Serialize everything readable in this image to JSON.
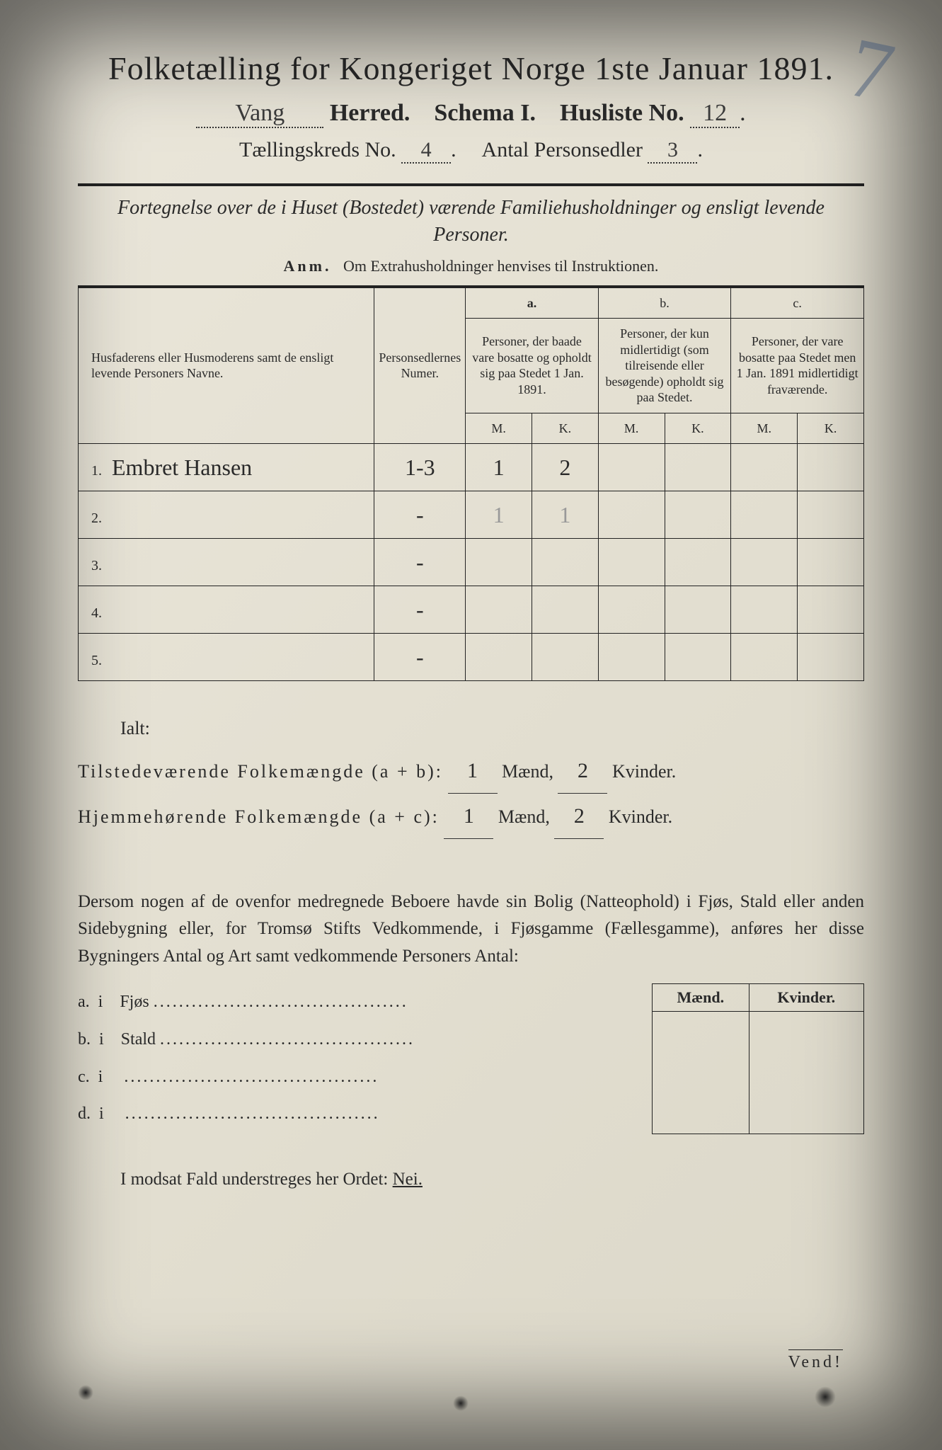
{
  "header": {
    "title": "Folketælling for Kongeriget Norge 1ste Januar 1891.",
    "herred_value": "Vang",
    "herred_label": "Herred.",
    "schema_label": "Schema I.",
    "husliste_label": "Husliste No.",
    "husliste_value": "12",
    "kreds_label": "Tællingskreds No.",
    "kreds_value": "4",
    "antal_label": "Antal Personsedler",
    "antal_value": "3"
  },
  "subtitle": "Fortegnelse over de i Huset (Bostedet) værende Familiehusholdninger og ensligt levende Personer.",
  "anm": {
    "label": "Anm.",
    "text": "Om Extrahusholdninger henvises til Instruktionen."
  },
  "table": {
    "columns": {
      "name": "Husfaderens eller Husmoderens samt de ensligt levende Personers Navne.",
      "numer": "Personsedlernes Numer.",
      "a_label": "a.",
      "a_text": "Personer, der baade vare bosatte og opholdt sig paa Stedet 1 Jan. 1891.",
      "b_label": "b.",
      "b_text": "Personer, der kun midlertidigt (som tilreisende eller besøgende) opholdt sig paa Stedet.",
      "c_label": "c.",
      "c_text": "Personer, der vare bosatte paa Stedet men 1 Jan. 1891 midlertidigt fraværende.",
      "m": "M.",
      "k": "K."
    },
    "rows": [
      {
        "n": "1.",
        "name": "Embret Hansen",
        "numer": "1-3",
        "a_m": "1",
        "a_k": "2",
        "b_m": "",
        "b_k": "",
        "c_m": "",
        "c_k": ""
      },
      {
        "n": "2.",
        "name": "",
        "numer": "-",
        "a_m": "1",
        "a_k": "1",
        "b_m": "",
        "b_k": "",
        "c_m": "",
        "c_k": "",
        "faint": true
      },
      {
        "n": "3.",
        "name": "",
        "numer": "-",
        "a_m": "",
        "a_k": "",
        "b_m": "",
        "b_k": "",
        "c_m": "",
        "c_k": ""
      },
      {
        "n": "4.",
        "name": "",
        "numer": "-",
        "a_m": "",
        "a_k": "",
        "b_m": "",
        "b_k": "",
        "c_m": "",
        "c_k": ""
      },
      {
        "n": "5.",
        "name": "",
        "numer": "-",
        "a_m": "",
        "a_k": "",
        "b_m": "",
        "b_k": "",
        "c_m": "",
        "c_k": ""
      }
    ]
  },
  "totals": {
    "ialt": "Ialt:",
    "tilstede_label": "Tilstedeværende Folkemængde (a + b):",
    "hjemme_label": "Hjemmehørende Folkemængde (a + c):",
    "maend": "Mænd,",
    "kvinder": "Kvinder.",
    "t_m": "1",
    "t_k": "2",
    "h_m": "1",
    "h_k": "2"
  },
  "para": "Dersom nogen af de ovenfor medregnede Beboere havde sin Bolig (Natteophold) i Fjøs, Stald eller anden Sidebygning eller, for Tromsø Stifts Vedkommende, i Fjøsgamme (Fællesgamme), anføres her disse Bygningers Antal og Art samt vedkommende Personers Antal:",
  "sidebygning": {
    "header_m": "Mænd.",
    "header_k": "Kvinder.",
    "rows": [
      {
        "letter": "a.",
        "i": "i",
        "label": "Fjøs"
      },
      {
        "letter": "b.",
        "i": "i",
        "label": "Stald"
      },
      {
        "letter": "c.",
        "i": "i",
        "label": ""
      },
      {
        "letter": "d.",
        "i": "i",
        "label": ""
      }
    ]
  },
  "modsat": {
    "text_a": "I modsat Fald understreges her Ordet: ",
    "nei": "Nei."
  },
  "vend": "Vend!",
  "pencil_mark": "7"
}
